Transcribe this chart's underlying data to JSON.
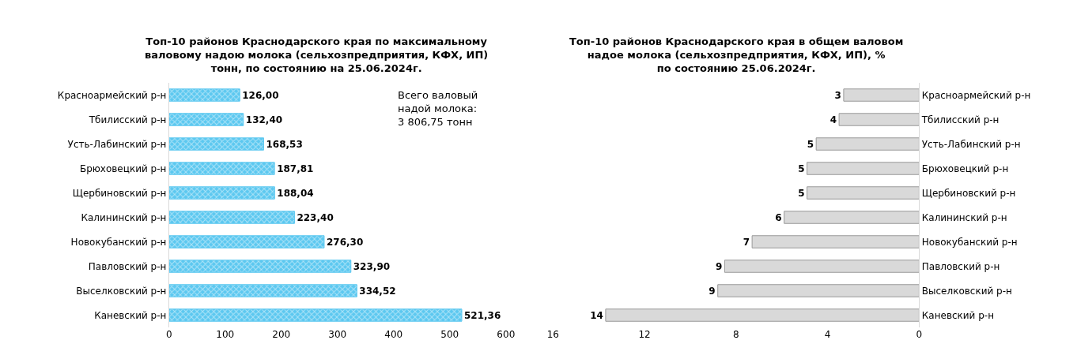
{
  "chart_data": [
    {
      "type": "bar",
      "orientation": "horizontal",
      "title": "Топ-10 районов Краснодарского края по максимальному\nваловому надою молока (сельхозпредприятия, КФХ, ИП)\nтонн, по состоянию на 25.06.2024г.",
      "categories": [
        "Красноармейский р-н",
        "Тбилисский р-н",
        "Усть-Лабинский р-н",
        "Брюховецкий р-н",
        "Щербиновский р-н",
        "Калининский р-н",
        "Новокубанский р-н",
        "Павловский р-н",
        "Выселковский р-н",
        "Каневский р-н"
      ],
      "values": [
        126.0,
        132.4,
        168.53,
        187.81,
        188.04,
        223.4,
        276.3,
        323.9,
        334.52,
        521.36
      ],
      "value_labels": [
        "126,00",
        "132,40",
        "168,53",
        "187,81",
        "188,04",
        "223,40",
        "276,30",
        "323,90",
        "334,52",
        "521,36"
      ],
      "color": "#5cc8f0",
      "xlim": [
        0,
        600
      ],
      "xticks": [
        0,
        100,
        200,
        300,
        400,
        500,
        600
      ],
      "annotations": [
        "Всего валовый\nнадой молока:\n3 806,75 тонн"
      ]
    },
    {
      "type": "bar",
      "orientation": "horizontal",
      "title": "Топ-10 районов Краснодарского края в общем валовом\nнадое молока (сельхозпредприятия, КФХ, ИП), %\nпо состоянию 25.06.2024г.",
      "categories": [
        "Красноармейский р-н",
        "Тбилисский р-н",
        "Усть-Лабинский р-н",
        "Брюховецкий р-н",
        "Щербиновский р-н",
        "Калининский р-н",
        "Новокубанский р-н",
        "Павловский р-н",
        "Выселковский р-н",
        "Каневский р-н"
      ],
      "values": [
        3.3,
        3.5,
        4.5,
        4.9,
        4.9,
        5.9,
        7.3,
        8.5,
        8.8,
        13.7
      ],
      "value_labels": [
        "3",
        "4",
        "5",
        "5",
        "5",
        "6",
        "7",
        "9",
        "9",
        "14"
      ],
      "color": "#d9d9d9",
      "xlim": [
        16,
        0
      ],
      "xticks": [
        16,
        12,
        8,
        4,
        0
      ]
    }
  ]
}
